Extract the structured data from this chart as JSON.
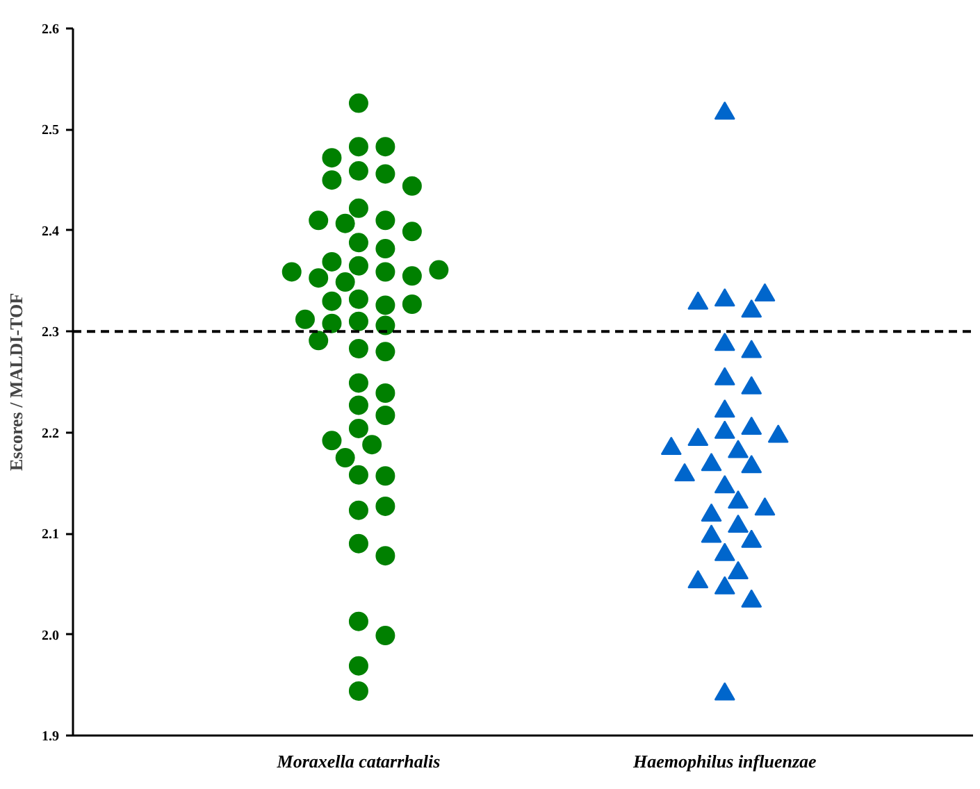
{
  "chart_data": {
    "type": "scatter",
    "ylabel": "Escores / MALDI-TOF",
    "categories": [
      "Moraxella catarrhalis",
      "Haemophilus influenzae"
    ],
    "ylim": [
      1.9,
      2.6
    ],
    "yticks": [
      {
        "value": 1.9,
        "label": "1.9"
      },
      {
        "value": 2.0,
        "label": "2.0"
      },
      {
        "value": 2.1,
        "label": "2.1"
      },
      {
        "value": 2.2,
        "label": "2.2"
      },
      {
        "value": 2.3,
        "label": "2.3"
      },
      {
        "value": 2.4,
        "label": "2.4"
      },
      {
        "value": 2.5,
        "label": "2.5"
      },
      {
        "value": 2.6,
        "label": "2.6"
      }
    ],
    "grid": false,
    "series": [
      {
        "color": "#008000",
        "marker": "circle",
        "x": [
          "Moraxella catarrhalis",
          "Moraxella catarrhalis",
          "Moraxella catarrhalis",
          "Moraxella catarrhalis",
          "Moraxella catarrhalis",
          "Moraxella catarrhalis",
          "Moraxella catarrhalis",
          "Moraxella catarrhalis",
          "Moraxella catarrhalis",
          "Moraxella catarrhalis",
          "Moraxella catarrhalis",
          "Moraxella catarrhalis",
          "Moraxella catarrhalis",
          "Moraxella catarrhalis",
          "Moraxella catarrhalis",
          "Moraxella catarrhalis",
          "Moraxella catarrhalis",
          "Moraxella catarrhalis",
          "Moraxella catarrhalis",
          "Moraxella catarrhalis",
          "Moraxella catarrhalis",
          "Moraxella catarrhalis",
          "Moraxella catarrhalis",
          "Moraxella catarrhalis",
          "Moraxella catarrhalis",
          "Moraxella catarrhalis",
          "Moraxella catarrhalis",
          "Moraxella catarrhalis",
          "Moraxella catarrhalis",
          "Moraxella catarrhalis",
          "Moraxella catarrhalis",
          "Moraxella catarrhalis",
          "Moraxella catarrhalis",
          "Moraxella catarrhalis",
          "Moraxella catarrhalis",
          "Moraxella catarrhalis",
          "Moraxella catarrhalis",
          "Moraxella catarrhalis",
          "Moraxella catarrhalis",
          "Moraxella catarrhalis",
          "Moraxella catarrhalis",
          "Moraxella catarrhalis",
          "Moraxella catarrhalis",
          "Moraxella catarrhalis",
          "Moraxella catarrhalis",
          "Moraxella catarrhalis",
          "Moraxella catarrhalis",
          "Moraxella catarrhalis",
          "Moraxella catarrhalis",
          "Moraxella catarrhalis",
          "Moraxella catarrhalis",
          "Moraxella catarrhalis"
        ],
        "values": [
          2.526,
          2.483,
          2.483,
          2.472,
          2.459,
          2.456,
          2.45,
          2.444,
          2.422,
          2.41,
          2.407,
          2.41,
          2.399,
          2.388,
          2.382,
          2.365,
          2.369,
          2.359,
          2.353,
          2.355,
          2.359,
          2.361,
          2.349,
          2.332,
          2.326,
          2.33,
          2.327,
          2.31,
          2.306,
          2.308,
          2.312,
          2.283,
          2.28,
          2.291,
          2.249,
          2.239,
          2.227,
          2.217,
          2.204,
          2.188,
          2.192,
          2.175,
          2.158,
          2.157,
          2.123,
          2.127,
          2.09,
          2.078,
          2.013,
          1.999,
          1.969,
          1.944
        ]
      },
      {
        "color": "#0066cc",
        "marker": "triangle",
        "x": [
          "Haemophilus influenzae",
          "Haemophilus influenzae",
          "Haemophilus influenzae",
          "Haemophilus influenzae",
          "Haemophilus influenzae",
          "Haemophilus influenzae",
          "Haemophilus influenzae",
          "Haemophilus influenzae",
          "Haemophilus influenzae",
          "Haemophilus influenzae",
          "Haemophilus influenzae",
          "Haemophilus influenzae",
          "Haemophilus influenzae",
          "Haemophilus influenzae",
          "Haemophilus influenzae",
          "Haemophilus influenzae",
          "Haemophilus influenzae",
          "Haemophilus influenzae",
          "Haemophilus influenzae",
          "Haemophilus influenzae",
          "Haemophilus influenzae",
          "Haemophilus influenzae",
          "Haemophilus influenzae",
          "Haemophilus influenzae",
          "Haemophilus influenzae",
          "Haemophilus influenzae",
          "Haemophilus influenzae",
          "Haemophilus influenzae",
          "Haemophilus influenzae",
          "Haemophilus influenzae",
          "Haemophilus influenzae",
          "Haemophilus influenzae"
        ],
        "values": [
          2.516,
          2.331,
          2.32,
          2.328,
          2.336,
          2.287,
          2.28,
          2.253,
          2.244,
          2.221,
          2.2,
          2.204,
          2.193,
          2.196,
          2.181,
          2.184,
          2.168,
          2.166,
          2.158,
          2.146,
          2.131,
          2.118,
          2.124,
          2.107,
          2.097,
          2.092,
          2.079,
          2.061,
          2.046,
          2.052,
          2.033,
          1.941
        ]
      }
    ],
    "ref_lines": [
      {
        "axis": "y",
        "value": 2.3,
        "line_style": "dashed",
        "color": "#000000"
      }
    ]
  }
}
